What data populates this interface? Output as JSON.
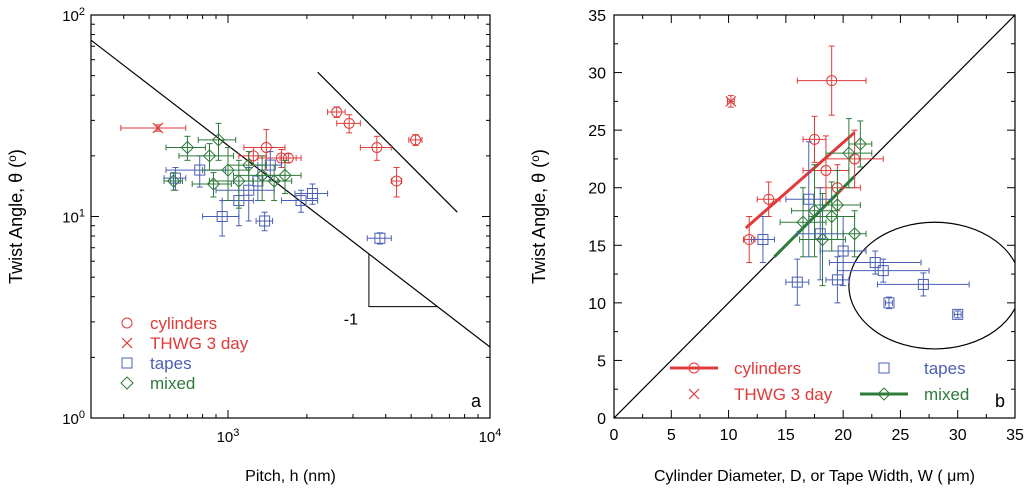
{
  "colors": {
    "cylinders": "#e03a3a",
    "thwg": "#e03a3a",
    "tapes": "#4a5fb4",
    "mixed": "#2e7a3a",
    "axis": "#000000"
  },
  "chart_data": [
    {
      "type": "scatter",
      "panel_label": "a",
      "xlabel": "Pitch, h (nm)",
      "ylabel": "Twist Angle, θ (°)",
      "xscale": "log",
      "yscale": "log",
      "xlim": [
        300,
        10000
      ],
      "ylim": [
        1,
        100
      ],
      "xticks": [
        {
          "v": 1000,
          "base": "10",
          "exp": "3"
        },
        {
          "v": 10000,
          "base": "10",
          "exp": "4"
        }
      ],
      "yticks": [
        {
          "v": 1,
          "base": "10",
          "exp": "0"
        },
        {
          "v": 10,
          "base": "10",
          "exp": "1"
        },
        {
          "v": 100,
          "base": "10",
          "exp": "2"
        }
      ],
      "legend": [
        "cylinders",
        "THWG 3 day",
        "tapes",
        "mixed"
      ],
      "legend_position": "bottom-left",
      "slope_label": "-1",
      "lines": [
        {
          "x": [
            300,
            10000
          ],
          "y": [
            75,
            2.25
          ]
        },
        {
          "x": [
            2200,
            7500
          ],
          "y": [
            52,
            10.5
          ]
        }
      ],
      "series": [
        {
          "name": "cylinders",
          "marker": "circle",
          "points": [
            {
              "x": 1400,
              "y": 22,
              "xe": 250,
              "ye": 5
            },
            {
              "x": 1600,
              "y": 19.5,
              "xe": 300,
              "ye": 2
            },
            {
              "x": 1250,
              "y": 20,
              "xe": 150,
              "ye": 2
            },
            {
              "x": 1700,
              "y": 19.5,
              "xe": 120,
              "ye": 1
            },
            {
              "x": 2600,
              "y": 33,
              "xe": 200,
              "ye": 2
            },
            {
              "x": 2900,
              "y": 29,
              "xe": 300,
              "ye": 3
            },
            {
              "x": 3700,
              "y": 22,
              "xe": 500,
              "ye": 3
            },
            {
              "x": 4400,
              "y": 15,
              "xe": 200,
              "ye": 2.5
            },
            {
              "x": 5200,
              "y": 24,
              "xe": 300,
              "ye": 1.5
            }
          ]
        },
        {
          "name": "THWG 3 day",
          "marker": "x",
          "points": [
            {
              "x": 540,
              "y": 27.5,
              "xe": 150,
              "ye": 1
            }
          ]
        },
        {
          "name": "tapes",
          "marker": "square",
          "points": [
            {
              "x": 630,
              "y": 15.5,
              "xe": 60,
              "ye": 2
            },
            {
              "x": 780,
              "y": 17,
              "xe": 200,
              "ye": 3
            },
            {
              "x": 1100,
              "y": 12,
              "xe": 150,
              "ye": 3
            },
            {
              "x": 1200,
              "y": 13.5,
              "xe": 300,
              "ye": 4
            },
            {
              "x": 1300,
              "y": 15,
              "xe": 250,
              "ye": 3
            },
            {
              "x": 950,
              "y": 10,
              "xe": 150,
              "ye": 2
            },
            {
              "x": 1380,
              "y": 9.5,
              "xe": 100,
              "ye": 1
            },
            {
              "x": 1450,
              "y": 18,
              "xe": 150,
              "ye": 3
            },
            {
              "x": 2100,
              "y": 13,
              "xe": 300,
              "ye": 1.5
            },
            {
              "x": 1900,
              "y": 12,
              "xe": 300,
              "ye": 1.5
            },
            {
              "x": 3800,
              "y": 7.8,
              "xe": 400,
              "ye": 0.5
            }
          ]
        },
        {
          "name": "mixed",
          "marker": "diamond",
          "points": [
            {
              "x": 700,
              "y": 22,
              "xe": 120,
              "ye": 3
            },
            {
              "x": 620,
              "y": 15,
              "xe": 50,
              "ye": 1.5
            },
            {
              "x": 850,
              "y": 20,
              "xe": 200,
              "ye": 3
            },
            {
              "x": 920,
              "y": 24,
              "xe": 150,
              "ye": 5
            },
            {
              "x": 1000,
              "y": 17,
              "xe": 200,
              "ye": 5
            },
            {
              "x": 1100,
              "y": 15,
              "xe": 250,
              "ye": 4
            },
            {
              "x": 1200,
              "y": 18,
              "xe": 200,
              "ye": 3
            },
            {
              "x": 1350,
              "y": 16,
              "xe": 300,
              "ye": 4
            },
            {
              "x": 1500,
              "y": 15,
              "xe": 250,
              "ye": 3
            },
            {
              "x": 1650,
              "y": 16,
              "xe": 250,
              "ye": 3
            },
            {
              "x": 880,
              "y": 14.5,
              "xe": 150,
              "ye": 2
            }
          ]
        }
      ]
    },
    {
      "type": "scatter",
      "panel_label": "b",
      "xlabel": "Cylinder Diameter, D, or Tape Width, W ( μm)",
      "ylabel": "Twist Angle, θ (°)",
      "xlim": [
        0,
        35
      ],
      "ylim": [
        0,
        35
      ],
      "xticks": [
        0,
        5,
        10,
        15,
        20,
        25,
        30,
        35
      ],
      "yticks": [
        0,
        5,
        10,
        15,
        20,
        25,
        30,
        35
      ],
      "legend": [
        "cylinders",
        "THWG 3 day",
        "tapes",
        "mixed"
      ],
      "legend_position": "bottom",
      "lines": [
        {
          "x": [
            0,
            35
          ],
          "y": [
            0,
            35
          ],
          "color": "axis"
        },
        {
          "x": [
            11.5,
            21
          ],
          "y": [
            16.5,
            24.8
          ],
          "color": "cylinders"
        },
        {
          "x": [
            14,
            21
          ],
          "y": [
            14,
            21
          ],
          "color": "mixed"
        }
      ],
      "ellipse": {
        "cx": 28,
        "cy": 11.5,
        "rx": 7.5,
        "ry": 5.5
      },
      "series": [
        {
          "name": "cylinders",
          "marker": "circle",
          "points": [
            {
              "x": 11.8,
              "y": 15.5,
              "xe": 0.5,
              "ye": 2
            },
            {
              "x": 13.5,
              "y": 19,
              "xe": 1,
              "ye": 1.5
            },
            {
              "x": 17.5,
              "y": 24.2,
              "xe": 1,
              "ye": 2
            },
            {
              "x": 19,
              "y": 29.3,
              "xe": 3,
              "ye": 3
            },
            {
              "x": 18.5,
              "y": 21.5,
              "xe": 2,
              "ye": 3
            },
            {
              "x": 19.5,
              "y": 20,
              "xe": 2,
              "ye": 2
            },
            {
              "x": 21,
              "y": 22.5,
              "xe": 2.5,
              "ye": 2.5
            }
          ]
        },
        {
          "name": "THWG 3 day",
          "marker": "x",
          "points": [
            {
              "x": 10.2,
              "y": 27.5,
              "xe": 0.3,
              "ye": 0.5
            }
          ]
        },
        {
          "name": "tapes",
          "marker": "square",
          "points": [
            {
              "x": 13,
              "y": 15.5,
              "xe": 1,
              "ye": 2
            },
            {
              "x": 16,
              "y": 11.8,
              "xe": 1,
              "ye": 2
            },
            {
              "x": 17,
              "y": 19,
              "xe": 2,
              "ye": 5
            },
            {
              "x": 18,
              "y": 16,
              "xe": 2,
              "ye": 4
            },
            {
              "x": 19.5,
              "y": 12,
              "xe": 1,
              "ye": 2
            },
            {
              "x": 20,
              "y": 14.5,
              "xe": 2,
              "ye": 3
            },
            {
              "x": 22.8,
              "y": 13.5,
              "xe": 4,
              "ye": 1
            },
            {
              "x": 23.5,
              "y": 12.8,
              "xe": 4,
              "ye": 1
            },
            {
              "x": 24,
              "y": 10,
              "xe": 0.3,
              "ye": 0.5
            },
            {
              "x": 27,
              "y": 11.6,
              "xe": 4,
              "ye": 1
            },
            {
              "x": 30,
              "y": 9,
              "xe": 0.3,
              "ye": 0.3
            }
          ]
        },
        {
          "name": "mixed",
          "marker": "diamond",
          "points": [
            {
              "x": 16.5,
              "y": 17,
              "xe": 2,
              "ye": 3
            },
            {
              "x": 17.5,
              "y": 18,
              "xe": 2,
              "ye": 4
            },
            {
              "x": 18.2,
              "y": 15.5,
              "xe": 2,
              "ye": 4
            },
            {
              "x": 19,
              "y": 17.5,
              "xe": 2,
              "ye": 3
            },
            {
              "x": 19.5,
              "y": 18.5,
              "xe": 2,
              "ye": 3
            },
            {
              "x": 20.5,
              "y": 23,
              "xe": 2,
              "ye": 3
            },
            {
              "x": 21,
              "y": 16,
              "xe": 1,
              "ye": 2
            },
            {
              "x": 21.5,
              "y": 23.8,
              "xe": 1,
              "ye": 2
            }
          ]
        }
      ]
    }
  ]
}
